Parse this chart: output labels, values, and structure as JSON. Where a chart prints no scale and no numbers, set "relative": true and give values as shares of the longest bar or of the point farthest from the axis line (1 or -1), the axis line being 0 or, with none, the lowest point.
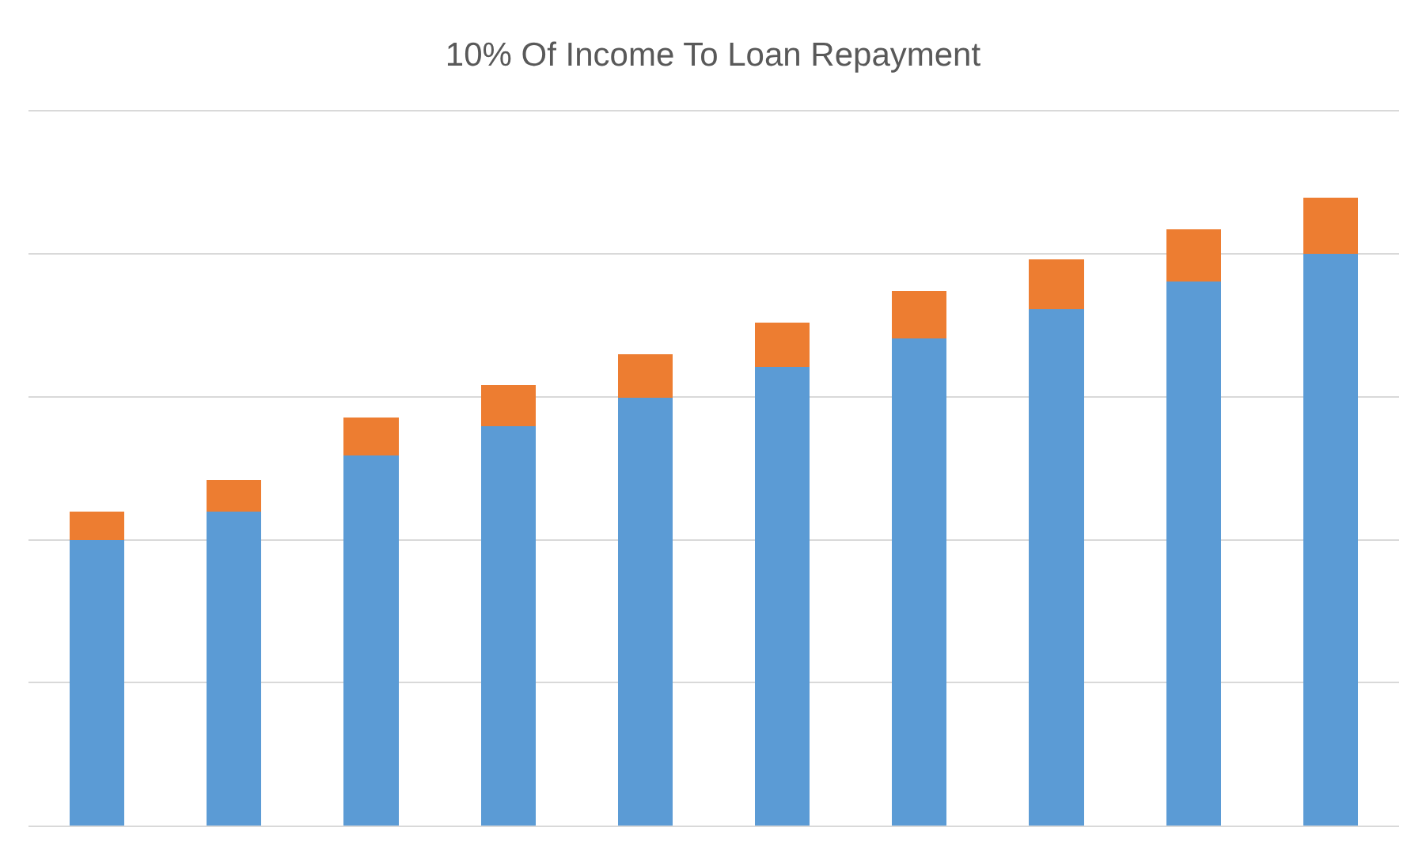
{
  "chart_data": {
    "type": "bar",
    "title": "10% Of Income To Loan Repayment",
    "relative": true,
    "stacked": true,
    "grid": "y",
    "categories": [
      null,
      null,
      null,
      null,
      null,
      null,
      null,
      null,
      null,
      null
    ],
    "series": [
      {
        "color": "#5b9bd5",
        "values": [
          0.455,
          0.5,
          0.59,
          0.636,
          0.681,
          0.731,
          0.776,
          0.822,
          0.867,
          0.91
        ]
      },
      {
        "color": "#ed7d31",
        "values": [
          0.045,
          0.05,
          0.06,
          0.065,
          0.07,
          0.07,
          0.075,
          0.08,
          0.083,
          0.09
        ]
      }
    ]
  }
}
